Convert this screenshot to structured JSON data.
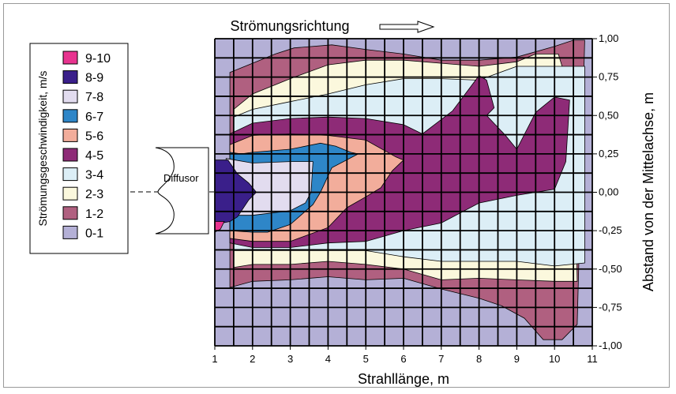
{
  "chart_data": {
    "type": "heatmap",
    "subtype": "contour",
    "title": "Strömungsrichtung",
    "xlabel": "Strahllänge, m",
    "ylabel": "Abstand von der Mittelachse, m",
    "legend_title": "Strömungsgeschwindigkeit, m/s",
    "diffusor_label": "Diffusor",
    "x_ticks": [
      "1",
      "2",
      "3",
      "4",
      "5",
      "6",
      "7",
      "8",
      "9",
      "10",
      "11"
    ],
    "y_ticks": [
      "1,00",
      "0,75",
      "0,50",
      "0,25",
      "0,00",
      "-0,25",
      "-0,50",
      "-0,75",
      "-1,00"
    ],
    "xlim": [
      1,
      11
    ],
    "ylim": [
      -1.0,
      1.0
    ],
    "grid": true,
    "legend_position": "left",
    "levels": [
      {
        "label": "9-10",
        "color": "#e8338f"
      },
      {
        "label": "8-9",
        "color": "#3a1f8a"
      },
      {
        "label": "7-8",
        "color": "#e2dcef"
      },
      {
        "label": "6-7",
        "color": "#2e86c8"
      },
      {
        "label": "5-6",
        "color": "#f2ad9b"
      },
      {
        "label": "4-5",
        "color": "#8e2b77"
      },
      {
        "label": "3-4",
        "color": "#dceef6"
      },
      {
        "label": "2-3",
        "color": "#fbf8dd"
      },
      {
        "label": "1-2",
        "color": "#b06080"
      },
      {
        "label": "0-1",
        "color": "#b4b0d6"
      }
    ],
    "regions": [
      {
        "level": "1-2",
        "points": [
          [
            1.4,
            0.78
          ],
          [
            2,
            0.84
          ],
          [
            2.6,
            0.9
          ],
          [
            3.1,
            0.94
          ],
          [
            4.1,
            0.96
          ],
          [
            5,
            0.93
          ],
          [
            6,
            0.9
          ],
          [
            7,
            0.86
          ],
          [
            8,
            0.86
          ],
          [
            9,
            0.88
          ],
          [
            10,
            0.95
          ],
          [
            10.5,
            0.99
          ],
          [
            10.8,
            0.99
          ],
          [
            10.6,
            -0.86
          ],
          [
            10.2,
            -0.96
          ],
          [
            9.7,
            -0.96
          ],
          [
            9.2,
            -0.82
          ],
          [
            8.6,
            -0.74
          ],
          [
            8,
            -0.69
          ],
          [
            7,
            -0.63
          ],
          [
            6,
            -0.56
          ],
          [
            5,
            -0.57
          ],
          [
            4,
            -0.55
          ],
          [
            3,
            -0.57
          ],
          [
            2,
            -0.58
          ],
          [
            1.4,
            -0.62
          ]
        ]
      },
      {
        "level": "2-3",
        "points": [
          [
            1.5,
            0.54
          ],
          [
            2,
            0.64
          ],
          [
            3,
            0.74
          ],
          [
            4,
            0.83
          ],
          [
            5,
            0.86
          ],
          [
            6,
            0.86
          ],
          [
            7,
            0.84
          ],
          [
            8,
            0.82
          ],
          [
            9,
            0.85
          ],
          [
            9.5,
            0.9
          ],
          [
            10.1,
            0.9
          ],
          [
            10.3,
            0.74
          ],
          [
            10.5,
            0.7
          ],
          [
            10.6,
            -0.58
          ],
          [
            10,
            -0.58
          ],
          [
            9,
            -0.57
          ],
          [
            8,
            -0.56
          ],
          [
            7,
            -0.57
          ],
          [
            6,
            -0.5
          ],
          [
            5,
            -0.47
          ],
          [
            4,
            -0.45
          ],
          [
            3,
            -0.47
          ],
          [
            2,
            -0.47
          ],
          [
            1.5,
            -0.49
          ]
        ]
      },
      {
        "level": "3-4",
        "points": [
          [
            1.5,
            0.49
          ],
          [
            2,
            0.54
          ],
          [
            3,
            0.59
          ],
          [
            4,
            0.64
          ],
          [
            5,
            0.7
          ],
          [
            6,
            0.74
          ],
          [
            7,
            0.74
          ],
          [
            8,
            0.73
          ],
          [
            9,
            0.82
          ],
          [
            10.8,
            0.82
          ],
          [
            10.8,
            -0.46
          ],
          [
            10,
            -0.48
          ],
          [
            9,
            -0.45
          ],
          [
            8,
            -0.45
          ],
          [
            7,
            -0.45
          ],
          [
            6,
            -0.42
          ],
          [
            5,
            -0.38
          ],
          [
            4,
            -0.38
          ],
          [
            3,
            -0.38
          ],
          [
            2,
            -0.38
          ],
          [
            1.5,
            -0.38
          ]
        ]
      },
      {
        "level": "4-5",
        "points": [
          [
            1.4,
            0.38
          ],
          [
            2,
            0.45
          ],
          [
            3,
            0.48
          ],
          [
            4,
            0.49
          ],
          [
            5,
            0.48
          ],
          [
            6,
            0.44
          ],
          [
            6.5,
            0.38
          ],
          [
            7.3,
            0.53
          ],
          [
            8,
            0.76
          ],
          [
            8.2,
            0.73
          ],
          [
            8.4,
            0.55
          ],
          [
            8.2,
            0.5
          ],
          [
            8.7,
            0.37
          ],
          [
            9,
            0.28
          ],
          [
            9.5,
            0.52
          ],
          [
            10,
            0.62
          ],
          [
            10.4,
            0.6
          ],
          [
            10.3,
            0.2
          ],
          [
            10,
            0.02
          ],
          [
            9,
            -0.02
          ],
          [
            8,
            -0.07
          ],
          [
            7,
            -0.2
          ],
          [
            6,
            -0.25
          ],
          [
            5,
            -0.32
          ],
          [
            4,
            -0.33
          ],
          [
            3,
            -0.36
          ],
          [
            2,
            -0.36
          ],
          [
            1.4,
            -0.33
          ]
        ]
      },
      {
        "level": "5-6",
        "points": [
          [
            1.4,
            0.31
          ],
          [
            2,
            0.37
          ],
          [
            3,
            0.38
          ],
          [
            4,
            0.37
          ],
          [
            5,
            0.34
          ],
          [
            5.8,
            0.23
          ],
          [
            6,
            0.21
          ],
          [
            5.7,
            0.14
          ],
          [
            5.4,
            0.03
          ],
          [
            5,
            -0.03
          ],
          [
            4.5,
            -0.1
          ],
          [
            4,
            -0.23
          ],
          [
            3,
            -0.32
          ],
          [
            2,
            -0.32
          ],
          [
            1.4,
            -0.3
          ]
        ]
      },
      {
        "level": "6-7",
        "points": [
          [
            1.4,
            0.26
          ],
          [
            1.7,
            0.25
          ],
          [
            2,
            0.26
          ],
          [
            3,
            0.28
          ],
          [
            3.8,
            0.32
          ],
          [
            4.2,
            0.3
          ],
          [
            4.6,
            0.26
          ],
          [
            4.8,
            0.25
          ],
          [
            4.1,
            0.16
          ],
          [
            3.8,
            0
          ],
          [
            3.6,
            -0.08
          ],
          [
            3,
            -0.21
          ],
          [
            2.4,
            -0.26
          ],
          [
            2,
            -0.26
          ],
          [
            1.4,
            -0.25
          ]
        ]
      },
      {
        "level": "7-8",
        "points": [
          [
            1.3,
            0.22
          ],
          [
            2,
            0.19
          ],
          [
            3,
            0.2
          ],
          [
            3.6,
            0.2
          ],
          [
            3.55,
            0
          ],
          [
            3.4,
            -0.07
          ],
          [
            3,
            -0.12
          ],
          [
            2,
            -0.15
          ],
          [
            1.3,
            -0.15
          ]
        ]
      },
      {
        "level": "8-9",
        "points": [
          [
            1,
            0.21
          ],
          [
            1.35,
            0.21
          ],
          [
            1.6,
            0.12
          ],
          [
            1.9,
            0.06
          ],
          [
            2.1,
            0.0
          ],
          [
            1.9,
            -0.05
          ],
          [
            1.6,
            -0.16
          ],
          [
            1.4,
            -0.19
          ],
          [
            1,
            -0.21
          ]
        ]
      },
      {
        "level": "9-10",
        "points": [
          [
            1,
            -0.19
          ],
          [
            1.25,
            -0.19
          ],
          [
            1.15,
            -0.24
          ],
          [
            1,
            -0.26
          ]
        ]
      }
    ]
  }
}
